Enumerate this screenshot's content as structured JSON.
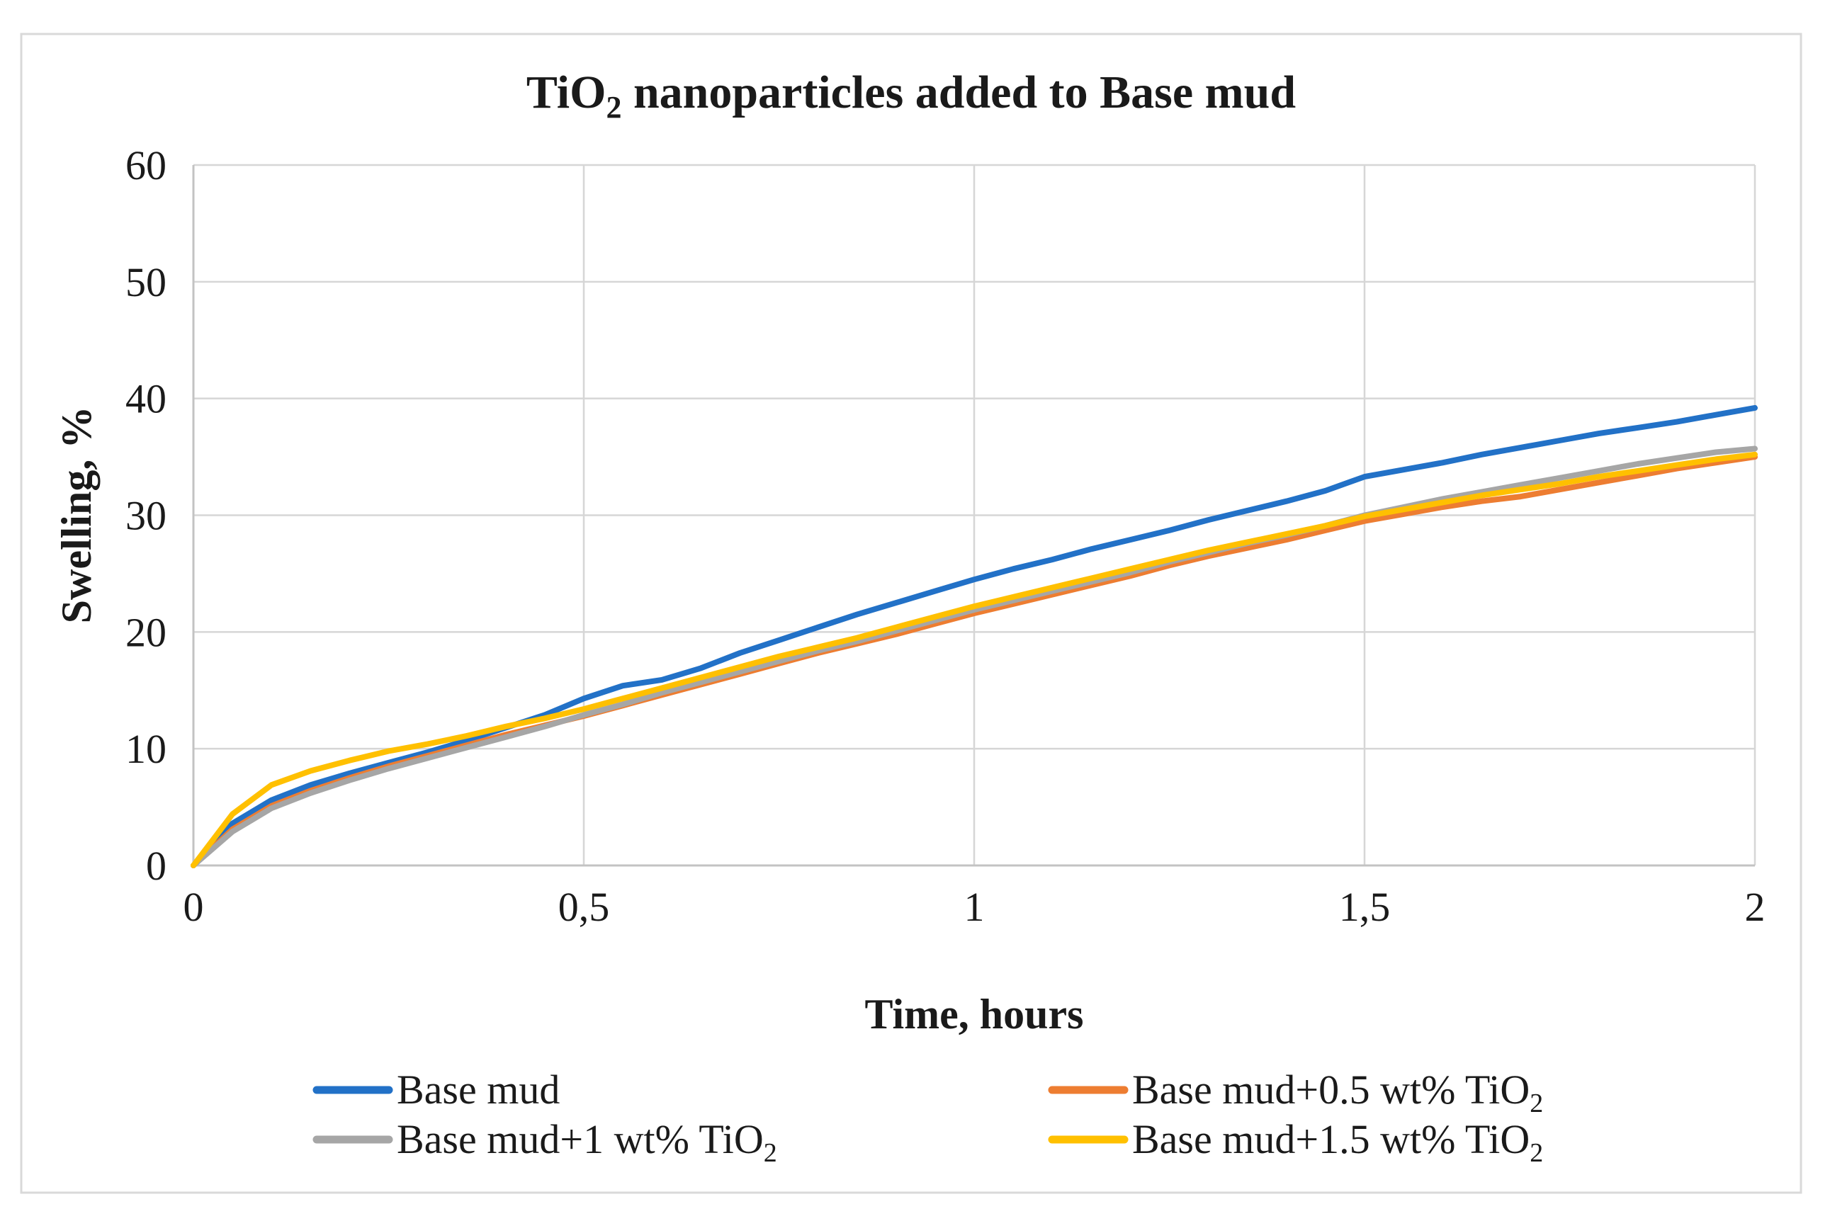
{
  "figure": {
    "background": "#ffffff",
    "border_color": "#d9d9d9"
  },
  "chart_data": {
    "type": "line",
    "title": {
      "pre": "TiO",
      "sub": "2",
      "post": " nanoparticles added to Base mud"
    },
    "xlabel": "Time, hours",
    "ylabel": "Swelling,  %",
    "xlim": [
      0,
      2
    ],
    "ylim": [
      0,
      60
    ],
    "x_ticks": [
      0,
      0.5,
      1,
      1.5,
      2
    ],
    "x_tick_labels": [
      "0",
      "0,5",
      "1",
      "1,5",
      "2"
    ],
    "y_ticks": [
      0,
      10,
      20,
      30,
      40,
      50,
      60
    ],
    "y_tick_labels": [
      "0",
      "10",
      "20",
      "30",
      "40",
      "50",
      "60"
    ],
    "grid": true,
    "gridline_color": "#d6d6d6",
    "axis_line_color": "#c3c3c3",
    "legend_position": "bottom",
    "x": [
      0,
      0.05,
      0.1,
      0.15,
      0.2,
      0.25,
      0.3,
      0.35,
      0.4,
      0.45,
      0.5,
      0.55,
      0.6,
      0.65,
      0.7,
      0.75,
      0.8,
      0.85,
      0.9,
      0.95,
      1.0,
      1.05,
      1.1,
      1.15,
      1.2,
      1.25,
      1.3,
      1.35,
      1.4,
      1.45,
      1.5,
      1.55,
      1.6,
      1.65,
      1.7,
      1.75,
      1.8,
      1.85,
      1.9,
      1.95,
      2.0
    ],
    "series": [
      {
        "name": "Base mud",
        "label_pre": "Base mud",
        "label_sub": "",
        "color": "#2271c7",
        "values": [
          0,
          3.6,
          5.6,
          6.9,
          7.9,
          8.8,
          9.7,
          10.7,
          11.8,
          12.9,
          14.3,
          15.4,
          15.9,
          16.9,
          18.2,
          19.3,
          20.4,
          21.5,
          22.5,
          23.5,
          24.5,
          25.4,
          26.2,
          27.1,
          27.9,
          28.7,
          29.6,
          30.4,
          31.2,
          32.1,
          33.3,
          33.9,
          34.5,
          35.2,
          35.8,
          36.4,
          37.0,
          37.5,
          38.0,
          38.6,
          39.2
        ]
      },
      {
        "name": "Base mud+0.5 wt% TiO2",
        "label_pre": "Base mud+0.5 wt% TiO",
        "label_sub": "2",
        "color": "#ed7d31",
        "values": [
          0,
          3.1,
          5.1,
          6.4,
          7.5,
          8.5,
          9.4,
          10.3,
          11.2,
          12.0,
          12.8,
          13.7,
          14.6,
          15.5,
          16.4,
          17.3,
          18.2,
          19.0,
          19.8,
          20.7,
          21.6,
          22.4,
          23.2,
          24.0,
          24.8,
          25.7,
          26.5,
          27.2,
          27.9,
          28.7,
          29.5,
          30.1,
          30.7,
          31.2,
          31.6,
          32.2,
          32.8,
          33.4,
          34.0,
          34.5,
          35.0
        ]
      },
      {
        "name": "Base mud+1 wt% TiO2",
        "label_pre": "Base mud+1 wt% TiO",
        "label_sub": "2",
        "color": "#a6a6a6",
        "values": [
          0,
          2.9,
          4.9,
          6.2,
          7.3,
          8.3,
          9.2,
          10.1,
          11.0,
          11.9,
          12.9,
          13.8,
          14.8,
          15.7,
          16.6,
          17.5,
          18.4,
          19.2,
          20.1,
          21.0,
          21.9,
          22.7,
          23.5,
          24.3,
          25.1,
          26.0,
          26.8,
          27.6,
          28.3,
          29.1,
          30.0,
          30.7,
          31.4,
          32.0,
          32.6,
          33.2,
          33.8,
          34.4,
          34.9,
          35.4,
          35.7
        ]
      },
      {
        "name": "Base mud+1.5 wt% TiO2",
        "label_pre": "Base mud+1.5 wt% TiO",
        "label_sub": "2",
        "color": "#ffc000",
        "values": [
          0,
          4.4,
          6.9,
          8.1,
          9.0,
          9.8,
          10.4,
          11.1,
          11.9,
          12.6,
          13.4,
          14.3,
          15.2,
          16.1,
          17.0,
          17.9,
          18.7,
          19.5,
          20.4,
          21.3,
          22.2,
          23.0,
          23.8,
          24.6,
          25.4,
          26.2,
          27.0,
          27.7,
          28.4,
          29.1,
          29.9,
          30.5,
          31.1,
          31.7,
          32.2,
          32.7,
          33.3,
          33.8,
          34.3,
          34.8,
          35.2
        ]
      }
    ]
  }
}
